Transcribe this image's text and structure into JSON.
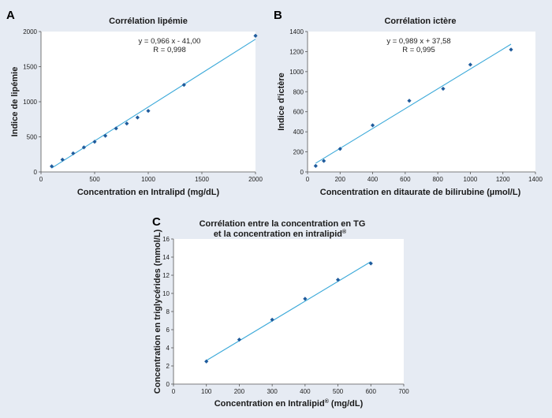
{
  "chart_data": [
    {
      "panel": "A",
      "type": "scatter",
      "title": "Corrélation lipémie",
      "xlabel": "Concentration en Intralipd (mg/dL)",
      "ylabel": "Indice de lipémie",
      "xlim": [
        0,
        2000
      ],
      "ylim": [
        0,
        2000
      ],
      "xticks": [
        0,
        500,
        1000,
        1500,
        2000
      ],
      "yticks": [
        0,
        500,
        1000,
        1500,
        2000
      ],
      "grid": false,
      "marker_color": "#1f5b9c",
      "trendline_color": "#3ba9d9",
      "annotations": [
        "y = 0,966 x - 41,00",
        "R = 0,998"
      ],
      "trendline": {
        "x": [
          100,
          2000
        ],
        "y": [
          55.6,
          1891
        ]
      },
      "points": [
        {
          "x": 100,
          "y": 80
        },
        {
          "x": 200,
          "y": 175
        },
        {
          "x": 300,
          "y": 265
        },
        {
          "x": 400,
          "y": 350
        },
        {
          "x": 500,
          "y": 430
        },
        {
          "x": 600,
          "y": 515
        },
        {
          "x": 700,
          "y": 620
        },
        {
          "x": 800,
          "y": 690
        },
        {
          "x": 900,
          "y": 775
        },
        {
          "x": 1000,
          "y": 870
        },
        {
          "x": 1333,
          "y": 1240
        },
        {
          "x": 2000,
          "y": 1940
        }
      ]
    },
    {
      "panel": "B",
      "type": "scatter",
      "title": "Corrélation ictère",
      "xlabel": "Concentration en ditaurate de bilirubine (µmol/L)",
      "ylabel": "Indice d'ictère",
      "xlim": [
        0,
        1400
      ],
      "ylim": [
        0,
        1400
      ],
      "xticks": [
        0,
        200,
        400,
        600,
        800,
        1000,
        1200,
        1400
      ],
      "yticks": [
        0,
        200,
        400,
        600,
        800,
        1000,
        1200,
        1400
      ],
      "grid": false,
      "marker_color": "#1f5b9c",
      "trendline_color": "#3ba9d9",
      "annotations": [
        "y = 0,989 x + 37,58",
        "R = 0,995"
      ],
      "trendline": {
        "x": [
          50,
          1250
        ],
        "y": [
          87,
          1274
        ]
      },
      "points": [
        {
          "x": 50,
          "y": 60
        },
        {
          "x": 100,
          "y": 110
        },
        {
          "x": 200,
          "y": 230
        },
        {
          "x": 400,
          "y": 465
        },
        {
          "x": 625,
          "y": 710
        },
        {
          "x": 833,
          "y": 830
        },
        {
          "x": 1000,
          "y": 1070
        },
        {
          "x": 1250,
          "y": 1220
        }
      ]
    },
    {
      "panel": "C",
      "type": "scatter",
      "title_lines": [
        "Corrélation entre la concentration en TG",
        "et la concentration en intralipid"
      ],
      "title_superscript": "®",
      "xlabel": "Concentration en Intralipid",
      "xlabel_superscript": "®",
      "xlabel_unit": " (mg/dL)",
      "ylabel": "Concentration en triglycérides (mmol/L)",
      "xlim": [
        0,
        700
      ],
      "ylim": [
        0,
        16
      ],
      "xticks": [
        0,
        100,
        200,
        300,
        400,
        500,
        600,
        700
      ],
      "yticks": [
        0,
        2,
        4,
        6,
        8,
        10,
        12,
        14,
        16
      ],
      "grid": false,
      "marker_color": "#1f5b9c",
      "trendline_color": "#3ba9d9",
      "trendline": {
        "x": [
          100,
          600
        ],
        "y": [
          2.6,
          13.5
        ]
      },
      "points": [
        {
          "x": 100,
          "y": 2.5
        },
        {
          "x": 200,
          "y": 4.9
        },
        {
          "x": 300,
          "y": 7.1
        },
        {
          "x": 400,
          "y": 9.4
        },
        {
          "x": 500,
          "y": 11.5
        },
        {
          "x": 600,
          "y": 13.3
        }
      ]
    }
  ]
}
